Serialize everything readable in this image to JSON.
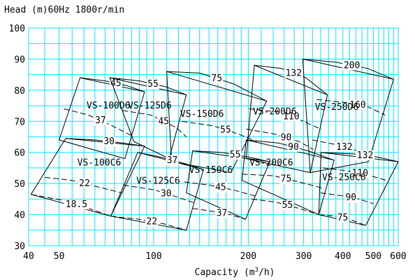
{
  "chart_data": {
    "type": "line",
    "title": "Head (m)60Hz  1800r/min",
    "xlabel": "Capacity (m3/h)",
    "x_scale": "log",
    "xlim": [
      40,
      600
    ],
    "ylim": [
      30,
      100
    ],
    "x_ticks": [
      40,
      50,
      100,
      200,
      300,
      400,
      500,
      600
    ],
    "y_ticks": [
      30,
      40,
      50,
      60,
      70,
      80,
      90,
      100
    ],
    "grid": true,
    "series": [
      {
        "name": "VS-100D6",
        "outline": [
          [
            50,
            64
          ],
          [
            58.3,
            84
          ],
          [
            93.5,
            79.5
          ],
          [
            81,
            58
          ]
        ],
        "speed_curves": [
          {
            "label": "45",
            "points": [
              [
                58.3,
                84
              ],
              [
                70,
                83
              ],
              [
                82,
                81.5
              ],
              [
                93.5,
                79.5
              ]
            ]
          },
          {
            "label": "37",
            "points": [
              [
                51.8,
                74
              ],
              [
                62,
                72
              ],
              [
                74,
                68.5
              ],
              [
                86.5,
                65
              ]
            ]
          }
        ]
      },
      {
        "name": "VS-125D6",
        "outline": [
          [
            86.5,
            63.5
          ],
          [
            72.5,
            84
          ],
          [
            127,
            78.5
          ],
          [
            112,
            58
          ]
        ],
        "speed_curves": [
          {
            "label": "55",
            "points": [
              [
                72.5,
                84
              ],
              [
                90,
                83
              ],
              [
                110,
                81
              ],
              [
                127,
                78.5
              ]
            ]
          },
          {
            "label": "45",
            "points": [
              [
                79.5,
                73.5
              ],
              [
                98,
                72
              ],
              [
                118,
                68
              ],
              [
                127,
                65
              ]
            ]
          }
        ]
      },
      {
        "name": "VS-150D6",
        "outline": [
          [
            114,
            57
          ],
          [
            110,
            86
          ],
          [
            229,
            76.5
          ],
          [
            176,
            53.5
          ]
        ],
        "speed_curves": [
          {
            "label": "75",
            "points": [
              [
                110,
                86
              ],
              [
                140,
                85.5
              ],
              [
                180,
                82
              ],
              [
                229,
                76.5
              ]
            ]
          },
          {
            "label": "55",
            "points": [
              [
                123,
                70
              ],
              [
                155,
                68.5
              ],
              [
                185,
                66
              ],
              [
                213,
                63.5
              ]
            ]
          }
        ]
      },
      {
        "name": "VS-200D6",
        "outline": [
          [
            197,
            58
          ],
          [
            209,
            88
          ],
          [
            357,
            78.5
          ],
          [
            315,
            53.5
          ]
        ],
        "speed_curves": [
          {
            "label": "132",
            "points": [
              [
                209,
                88
              ],
              [
                255,
                87
              ],
              [
                305,
                84
              ],
              [
                357,
                78.5
              ]
            ]
          },
          {
            "label": "110",
            "points": [
              [
                201,
                74
              ],
              [
                250,
                73
              ],
              [
                300,
                70
              ],
              [
                340,
                67.5
              ]
            ]
          },
          {
            "label": "90",
            "points": [
              [
                197,
                67.5
              ],
              [
                240,
                66
              ],
              [
                290,
                63.5
              ],
              [
                322,
                61
              ]
            ]
          }
        ]
      },
      {
        "name": "VS-250D6",
        "outline": [
          [
            315,
            53.5
          ],
          [
            298,
            90
          ],
          [
            580,
            83.5
          ],
          [
            482,
            57
          ]
        ],
        "speed_curves": [
          {
            "label": "200",
            "points": [
              [
                298,
                90
              ],
              [
                380,
                89
              ],
              [
                480,
                87
              ],
              [
                580,
                83.5
              ]
            ]
          },
          {
            "label": "160",
            "points": [
              [
                330,
                77
              ],
              [
                410,
                76
              ],
              [
                485,
                74.5
              ],
              [
                545,
                72
              ]
            ]
          },
          {
            "label": "132",
            "points": [
              [
                320,
                64
              ],
              [
                380,
                62.5
              ],
              [
                430,
                61
              ],
              [
                482,
                59
              ]
            ]
          }
        ]
      },
      {
        "name": "VS-100C6",
        "outline": [
          [
            40.7,
            46.5
          ],
          [
            52.5,
            64.5
          ],
          [
            93.5,
            62
          ],
          [
            73,
            39.5
          ]
        ],
        "speed_curves": [
          {
            "label": "30",
            "points": [
              [
                52.5,
                64.5
              ],
              [
                65,
                64
              ],
              [
                80,
                63
              ],
              [
                93.5,
                62
              ]
            ]
          },
          {
            "label": "22",
            "points": [
              [
                45,
                52
              ],
              [
                55,
                51
              ],
              [
                66,
                49
              ],
              [
                79,
                47
              ]
            ]
          },
          {
            "label": "18.5",
            "points": [
              [
                40.7,
                46.5
              ],
              [
                52,
                44.5
              ],
              [
                62,
                42
              ],
              [
                73,
                39.5
              ]
            ]
          }
        ]
      },
      {
        "name": "VS-125C6",
        "outline": [
          [
            73,
            39.5
          ],
          [
            89,
            60
          ],
          [
            144,
            54.5
          ],
          [
            127,
            35
          ]
        ],
        "speed_curves": [
          {
            "label": "37",
            "points": [
              [
                89,
                60
              ],
              [
                105,
                58.5
              ],
              [
                125,
                56.5
              ],
              [
                144,
                54.5
              ]
            ]
          },
          {
            "label": "30",
            "points": [
              [
                80,
                49.5
              ],
              [
                100,
                48
              ],
              [
                120,
                45.5
              ],
              [
                137,
                43.5
              ]
            ]
          },
          {
            "label": "22",
            "points": [
              [
                73,
                39.5
              ],
              [
                90,
                38.5
              ],
              [
                108,
                37
              ],
              [
                127,
                35
              ]
            ]
          }
        ]
      },
      {
        "name": "VS-150C6",
        "outline": [
          [
            127,
            47
          ],
          [
            133,
            60.5
          ],
          [
            234,
            57
          ],
          [
            196,
            38.5
          ]
        ],
        "speed_curves": [
          {
            "label": "55",
            "points": [
              [
                133,
                60.5
              ],
              [
                165,
                60
              ],
              [
                200,
                58.5
              ],
              [
                234,
                57
              ]
            ]
          },
          {
            "label": "45",
            "points": [
              [
                125,
                50.5
              ],
              [
                150,
                49.5
              ],
              [
                178,
                48
              ],
              [
                210,
                46
              ]
            ]
          },
          {
            "label": "37",
            "points": [
              [
                133,
                42
              ],
              [
                155,
                41
              ],
              [
                175,
                40
              ],
              [
                196,
                38.5
              ]
            ]
          }
        ]
      },
      {
        "name": "VS-200C6",
        "outline": [
          [
            191,
            51
          ],
          [
            197,
            64
          ],
          [
            375,
            57.5
          ],
          [
            335,
            40
          ]
        ],
        "speed_curves": [
          {
            "label": "90",
            "points": [
              [
                197,
                64
              ],
              [
                250,
                63
              ],
              [
                310,
                60.5
              ],
              [
                375,
                57.5
              ]
            ]
          },
          {
            "label": "75",
            "points": [
              [
                191,
                53
              ],
              [
                240,
                52.5
              ],
              [
                290,
                50.5
              ],
              [
                345,
                48.5
              ]
            ]
          },
          {
            "label": "55",
            "points": [
              [
                205,
                45
              ],
              [
                245,
                44
              ],
              [
                290,
                42
              ],
              [
                335,
                40
              ]
            ]
          }
        ]
      },
      {
        "name": "VS-250C6",
        "outline": [
          [
            335,
            40
          ],
          [
            341,
            60
          ],
          [
            600,
            57
          ],
          [
            473,
            36.5
          ]
        ],
        "speed_curves": [
          {
            "label": "132",
            "points": [
              [
                341,
                60
              ],
              [
                430,
                59.5
              ],
              [
                515,
                58.5
              ],
              [
                600,
                57
              ]
            ]
          },
          {
            "label": "110",
            "points": [
              [
                345,
                55
              ],
              [
                420,
                54
              ],
              [
                490,
                52.5
              ],
              [
                550,
                51
              ]
            ]
          },
          {
            "label": "90",
            "points": [
              [
                340,
                47
              ],
              [
                400,
                46
              ],
              [
                450,
                45
              ],
              [
                500,
                43.5
              ]
            ]
          },
          {
            "label": "75",
            "points": [
              [
                335,
                40
              ],
              [
                380,
                39.5
              ],
              [
                420,
                38.5
              ],
              [
                473,
                36.5
              ]
            ]
          }
        ]
      }
    ]
  }
}
